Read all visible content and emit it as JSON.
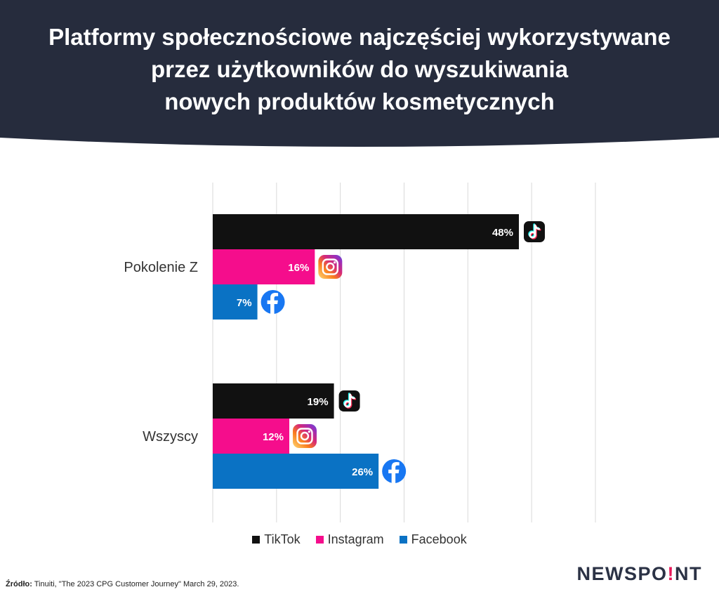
{
  "header": {
    "title_lines": [
      "Platformy społecznościowe najczęściej wykorzystywane",
      "przez użytkowników do wyszukiwania",
      "nowych produktów kosmetycznych"
    ],
    "background_color": "#262c3d"
  },
  "chart_data": {
    "type": "bar",
    "orientation": "horizontal",
    "categories": [
      "Pokolenie Z",
      "Wszyscy"
    ],
    "series": [
      {
        "name": "TikTok",
        "color": "#111111",
        "icon": "tiktok-icon",
        "values": [
          48,
          19
        ],
        "labels": [
          "48%",
          "19%"
        ]
      },
      {
        "name": "Instagram",
        "color": "#f50d8c",
        "icon": "instagram-icon",
        "values": [
          16,
          12
        ],
        "labels": [
          "16%",
          "12%"
        ]
      },
      {
        "name": "Facebook",
        "color": "#0a72c4",
        "icon": "facebook-icon",
        "values": [
          7,
          26
        ],
        "labels": [
          "7%",
          "26%"
        ]
      }
    ],
    "xlim": [
      0,
      60
    ],
    "grid": true,
    "legend_position": "bottom"
  },
  "footer": {
    "source_label": "Źródło:",
    "source_text": "Tinuiti, \"The 2023 CPG Customer Journey\" March 29, 2023.",
    "brand_left": "NEWSPO",
    "brand_dot": "!",
    "brand_right": "NT"
  }
}
